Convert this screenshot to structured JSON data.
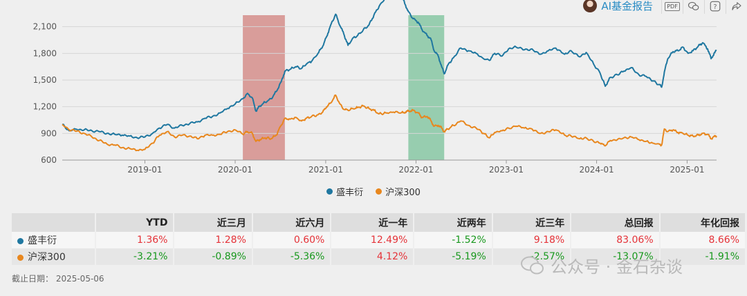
{
  "toolbar": {
    "ai_report_label": "AI基金报告",
    "pdf_icon_text": "PDF"
  },
  "chart_data": {
    "type": "line",
    "ylim": [
      600,
      2400
    ],
    "yticks": [
      600,
      900,
      1200,
      1500,
      1800,
      2100
    ],
    "ytick_labels": [
      "600",
      "900",
      "1,200",
      "1,500",
      "1,800",
      "2,100"
    ],
    "xlim": [
      "2018-02-01",
      "2025-04-30"
    ],
    "xticks": [
      "2019-01-01",
      "2020-01-01",
      "2021-01-01",
      "2022-01-01",
      "2023-01-01",
      "2024-01-01",
      "2025-01-01"
    ],
    "xtick_labels": [
      "2019-01",
      "2020-01",
      "2021-01",
      "2022-01",
      "2023-01",
      "2024-01",
      "2025-01"
    ],
    "grid": true,
    "legend_position": "bottom",
    "shaded_periods": [
      {
        "start": "2020-02-01",
        "end": "2020-07-20",
        "color": "#d99d9a"
      },
      {
        "start": "2021-12-01",
        "end": "2022-04-25",
        "color": "#97cdaf"
      }
    ],
    "series": [
      {
        "name": "盛丰衍",
        "color": "#1f77a0",
        "points": [
          [
            "2018-02-01",
            1000
          ],
          [
            "2018-03-01",
            930
          ],
          [
            "2018-04-01",
            945
          ],
          [
            "2018-05-01",
            940
          ],
          [
            "2018-06-01",
            930
          ],
          [
            "2018-07-01",
            920
          ],
          [
            "2018-08-01",
            900
          ],
          [
            "2018-09-01",
            890
          ],
          [
            "2018-10-01",
            880
          ],
          [
            "2018-11-01",
            870
          ],
          [
            "2018-12-01",
            850
          ],
          [
            "2019-01-01",
            860
          ],
          [
            "2019-02-01",
            900
          ],
          [
            "2019-03-01",
            960
          ],
          [
            "2019-04-01",
            1000
          ],
          [
            "2019-05-01",
            960
          ],
          [
            "2019-06-01",
            990
          ],
          [
            "2019-07-01",
            1010
          ],
          [
            "2019-08-01",
            1030
          ],
          [
            "2019-09-01",
            1070
          ],
          [
            "2019-10-01",
            1090
          ],
          [
            "2019-11-01",
            1130
          ],
          [
            "2019-12-01",
            1180
          ],
          [
            "2020-01-01",
            1230
          ],
          [
            "2020-02-01",
            1290
          ],
          [
            "2020-02-20",
            1350
          ],
          [
            "2020-03-10",
            1300
          ],
          [
            "2020-03-25",
            1150
          ],
          [
            "2020-04-10",
            1210
          ],
          [
            "2020-05-01",
            1250
          ],
          [
            "2020-05-25",
            1290
          ],
          [
            "2020-06-15",
            1370
          ],
          [
            "2020-07-05",
            1480
          ],
          [
            "2020-07-20",
            1600
          ],
          [
            "2020-08-10",
            1620
          ],
          [
            "2020-09-01",
            1650
          ],
          [
            "2020-09-25",
            1630
          ],
          [
            "2020-10-15",
            1680
          ],
          [
            "2020-11-05",
            1710
          ],
          [
            "2020-12-01",
            1800
          ],
          [
            "2020-12-20",
            1880
          ],
          [
            "2021-01-05",
            1990
          ],
          [
            "2021-01-20",
            2110
          ],
          [
            "2021-02-10",
            2240
          ],
          [
            "2021-02-28",
            2110
          ],
          [
            "2021-03-15",
            2020
          ],
          [
            "2021-04-01",
            1890
          ],
          [
            "2021-04-20",
            1970
          ],
          [
            "2021-05-10",
            2000
          ],
          [
            "2021-06-01",
            2060
          ],
          [
            "2021-06-25",
            2120
          ],
          [
            "2021-07-15",
            2230
          ],
          [
            "2021-08-05",
            2330
          ],
          [
            "2021-09-01",
            2430
          ],
          [
            "2021-10-01",
            2460
          ],
          [
            "2021-11-01",
            2460
          ],
          [
            "2021-11-20",
            2340
          ],
          [
            "2021-12-01",
            2270
          ],
          [
            "2021-12-20",
            2190
          ],
          [
            "2022-01-10",
            2150
          ],
          [
            "2022-01-25",
            2070
          ],
          [
            "2022-02-15",
            2000
          ],
          [
            "2022-03-01",
            1970
          ],
          [
            "2022-03-15",
            1830
          ],
          [
            "2022-04-01",
            1770
          ],
          [
            "2022-04-15",
            1650
          ],
          [
            "2022-04-25",
            1570
          ],
          [
            "2022-05-10",
            1670
          ],
          [
            "2022-06-01",
            1750
          ],
          [
            "2022-07-01",
            1860
          ],
          [
            "2022-08-01",
            1830
          ],
          [
            "2022-09-01",
            1800
          ],
          [
            "2022-10-01",
            1740
          ],
          [
            "2022-10-25",
            1720
          ],
          [
            "2022-11-15",
            1800
          ],
          [
            "2022-12-15",
            1770
          ],
          [
            "2023-01-10",
            1850
          ],
          [
            "2023-02-10",
            1870
          ],
          [
            "2023-03-15",
            1840
          ],
          [
            "2023-04-15",
            1850
          ],
          [
            "2023-05-20",
            1790
          ],
          [
            "2023-06-20",
            1830
          ],
          [
            "2023-07-20",
            1860
          ],
          [
            "2023-08-25",
            1790
          ],
          [
            "2023-09-20",
            1830
          ],
          [
            "2023-10-25",
            1760
          ],
          [
            "2023-11-20",
            1810
          ],
          [
            "2023-12-20",
            1680
          ],
          [
            "2024-01-15",
            1580
          ],
          [
            "2024-02-05",
            1430
          ],
          [
            "2024-02-25",
            1530
          ],
          [
            "2024-03-25",
            1560
          ],
          [
            "2024-04-20",
            1600
          ],
          [
            "2024-05-20",
            1640
          ],
          [
            "2024-06-20",
            1560
          ],
          [
            "2024-07-20",
            1540
          ],
          [
            "2024-08-15",
            1490
          ],
          [
            "2024-09-10",
            1450
          ],
          [
            "2024-09-20",
            1420
          ],
          [
            "2024-10-01",
            1590
          ],
          [
            "2024-10-15",
            1740
          ],
          [
            "2024-11-05",
            1820
          ],
          [
            "2024-11-25",
            1830
          ],
          [
            "2024-12-15",
            1870
          ],
          [
            "2025-01-05",
            1800
          ],
          [
            "2025-01-25",
            1830
          ],
          [
            "2025-02-15",
            1880
          ],
          [
            "2025-03-05",
            1920
          ],
          [
            "2025-03-25",
            1850
          ],
          [
            "2025-04-08",
            1740
          ],
          [
            "2025-04-20",
            1800
          ],
          [
            "2025-04-30",
            1830
          ]
        ]
      },
      {
        "name": "沪深300",
        "color": "#e8871e",
        "points": [
          [
            "2018-02-01",
            1000
          ],
          [
            "2018-03-01",
            940
          ],
          [
            "2018-04-01",
            925
          ],
          [
            "2018-05-01",
            900
          ],
          [
            "2018-06-01",
            860
          ],
          [
            "2018-07-01",
            820
          ],
          [
            "2018-08-01",
            780
          ],
          [
            "2018-09-01",
            770
          ],
          [
            "2018-10-01",
            740
          ],
          [
            "2018-11-01",
            730
          ],
          [
            "2018-12-01",
            710
          ],
          [
            "2019-01-01",
            720
          ],
          [
            "2019-02-01",
            790
          ],
          [
            "2019-03-01",
            880
          ],
          [
            "2019-04-01",
            920
          ],
          [
            "2019-05-01",
            860
          ],
          [
            "2019-06-01",
            880
          ],
          [
            "2019-07-01",
            870
          ],
          [
            "2019-08-01",
            840
          ],
          [
            "2019-09-01",
            880
          ],
          [
            "2019-10-01",
            880
          ],
          [
            "2019-11-01",
            890
          ],
          [
            "2019-12-01",
            920
          ],
          [
            "2020-01-01",
            940
          ],
          [
            "2020-02-01",
            890
          ],
          [
            "2020-02-20",
            920
          ],
          [
            "2020-03-10",
            900
          ],
          [
            "2020-03-25",
            810
          ],
          [
            "2020-04-10",
            830
          ],
          [
            "2020-05-01",
            850
          ],
          [
            "2020-05-25",
            840
          ],
          [
            "2020-06-15",
            880
          ],
          [
            "2020-07-05",
            990
          ],
          [
            "2020-07-20",
            1070
          ],
          [
            "2020-08-10",
            1060
          ],
          [
            "2020-09-01",
            1080
          ],
          [
            "2020-09-25",
            1040
          ],
          [
            "2020-10-15",
            1070
          ],
          [
            "2020-11-05",
            1090
          ],
          [
            "2020-12-01",
            1110
          ],
          [
            "2020-12-20",
            1140
          ],
          [
            "2021-01-05",
            1200
          ],
          [
            "2021-01-20",
            1240
          ],
          [
            "2021-02-10",
            1330
          ],
          [
            "2021-02-28",
            1230
          ],
          [
            "2021-03-15",
            1170
          ],
          [
            "2021-04-01",
            1160
          ],
          [
            "2021-04-20",
            1180
          ],
          [
            "2021-05-10",
            1190
          ],
          [
            "2021-06-01",
            1210
          ],
          [
            "2021-06-25",
            1180
          ],
          [
            "2021-07-15",
            1160
          ],
          [
            "2021-08-05",
            1120
          ],
          [
            "2021-09-01",
            1130
          ],
          [
            "2021-10-01",
            1140
          ],
          [
            "2021-11-01",
            1130
          ],
          [
            "2021-11-20",
            1140
          ],
          [
            "2021-12-01",
            1150
          ],
          [
            "2021-12-20",
            1160
          ],
          [
            "2022-01-10",
            1130
          ],
          [
            "2022-01-25",
            1080
          ],
          [
            "2022-02-15",
            1090
          ],
          [
            "2022-03-01",
            1050
          ],
          [
            "2022-03-15",
            980
          ],
          [
            "2022-04-01",
            990
          ],
          [
            "2022-04-15",
            960
          ],
          [
            "2022-04-25",
            920
          ],
          [
            "2022-05-10",
            950
          ],
          [
            "2022-06-01",
            990
          ],
          [
            "2022-07-01",
            1040
          ],
          [
            "2022-08-01",
            990
          ],
          [
            "2022-09-01",
            960
          ],
          [
            "2022-10-01",
            900
          ],
          [
            "2022-10-25",
            850
          ],
          [
            "2022-11-15",
            910
          ],
          [
            "2022-12-15",
            930
          ],
          [
            "2023-01-10",
            960
          ],
          [
            "2023-02-10",
            980
          ],
          [
            "2023-03-15",
            960
          ],
          [
            "2023-04-15",
            950
          ],
          [
            "2023-05-20",
            900
          ],
          [
            "2023-06-20",
            920
          ],
          [
            "2023-07-20",
            940
          ],
          [
            "2023-08-25",
            880
          ],
          [
            "2023-09-20",
            870
          ],
          [
            "2023-10-25",
            840
          ],
          [
            "2023-11-20",
            850
          ],
          [
            "2023-12-20",
            810
          ],
          [
            "2024-01-15",
            790
          ],
          [
            "2024-02-05",
            760
          ],
          [
            "2024-02-25",
            820
          ],
          [
            "2024-03-25",
            830
          ],
          [
            "2024-04-20",
            850
          ],
          [
            "2024-05-20",
            860
          ],
          [
            "2024-06-20",
            830
          ],
          [
            "2024-07-20",
            810
          ],
          [
            "2024-08-15",
            790
          ],
          [
            "2024-09-10",
            780
          ],
          [
            "2024-09-20",
            770
          ],
          [
            "2024-10-01",
            950
          ],
          [
            "2024-10-15",
            920
          ],
          [
            "2024-11-05",
            940
          ],
          [
            "2024-11-25",
            910
          ],
          [
            "2024-12-15",
            900
          ],
          [
            "2025-01-05",
            880
          ],
          [
            "2025-01-25",
            870
          ],
          [
            "2025-02-15",
            880
          ],
          [
            "2025-03-05",
            900
          ],
          [
            "2025-03-25",
            890
          ],
          [
            "2025-04-08",
            840
          ],
          [
            "2025-04-20",
            865
          ],
          [
            "2025-04-30",
            870
          ]
        ]
      }
    ]
  },
  "table": {
    "headers": [
      "",
      "YTD",
      "近三月",
      "近六月",
      "近一年",
      "近两年",
      "近三年",
      "总回报",
      "年化回报"
    ],
    "rows": [
      {
        "name": "盛丰衍",
        "color": "#1f77a0",
        "values": [
          "1.36%",
          "1.28%",
          "0.60%",
          "12.49%",
          "-1.52%",
          "9.18%",
          "83.06%",
          "8.66%"
        ]
      },
      {
        "name": "沪深300",
        "color": "#e8871e",
        "values": [
          "-3.21%",
          "-0.89%",
          "-5.36%",
          "4.12%",
          "-5.19%",
          "-2.57%",
          "-13.07%",
          "-1.91%"
        ]
      }
    ]
  },
  "as_of": "截止日期：  2025-05-06",
  "watermark": "公众号 · 金石杂谈"
}
